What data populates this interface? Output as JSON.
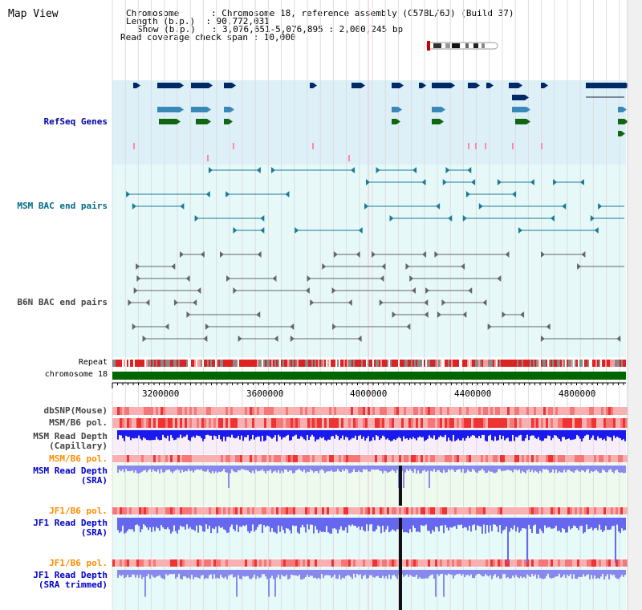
{
  "view": {
    "title": "Map View"
  },
  "info": {
    "lines": [
      "Chromosome      : Chromosome 18, reference assembly (C57BL/6J) (Build 37)",
      "Length (b.p.)  : 90,772,031",
      "Show (b.p.)   : 3,076,651-5,076,895 : 2,000,245 bp",
      "Read coverage check span : 10,000"
    ]
  },
  "tracks": {
    "refseq": {
      "label": "RefSeq Genes",
      "color": "#0000aa"
    },
    "msm_bac": {
      "label": "MSM BAC end pairs",
      "color": "#006a88"
    },
    "b6n_bac": {
      "label": "B6N BAC end pairs",
      "color": "#444444"
    },
    "repeat": {
      "label": "Repeat"
    },
    "chromosome": {
      "label": "chromosome 18"
    },
    "axis_ticks": [
      "3200000",
      "3600000",
      "4000000",
      "4400000",
      "4800000"
    ],
    "dbsnp": {
      "label": "dbSNP(Mouse)"
    },
    "msm_b6_pol_1": {
      "label": "MSM/B6 pol."
    },
    "msm_depth_cap": {
      "label_1": "MSM Read Depth",
      "label_2": "(Capillary)"
    },
    "msm_b6_pol_2": {
      "label": "MSM/B6 pol."
    },
    "msm_depth_sra": {
      "label_1": "MSM Read Depth",
      "label_2": "(SRA)"
    },
    "jf1_b6_pol_1": {
      "label": "JF1/B6 pol."
    },
    "jf1_depth_sra": {
      "label_1": "JF1 Read Depth",
      "label_2": "(SRA)"
    },
    "jf1_b6_pol_2": {
      "label": "JF1/B6 pol."
    },
    "jf1_depth_trim": {
      "label_1": "JF1 Read Depth",
      "label_2": "(SRA trimmed)"
    }
  },
  "colors": {
    "blue_label": "#0000cc",
    "orange_label": "#ff8c00",
    "refseq_bg": "#ddf0f8",
    "bac_bg": "#e6f8f8",
    "gene_dark": "#002a66",
    "gene_mid": "#3a88b8",
    "gene_green": "#116611",
    "chromosome_green": "#006600"
  }
}
